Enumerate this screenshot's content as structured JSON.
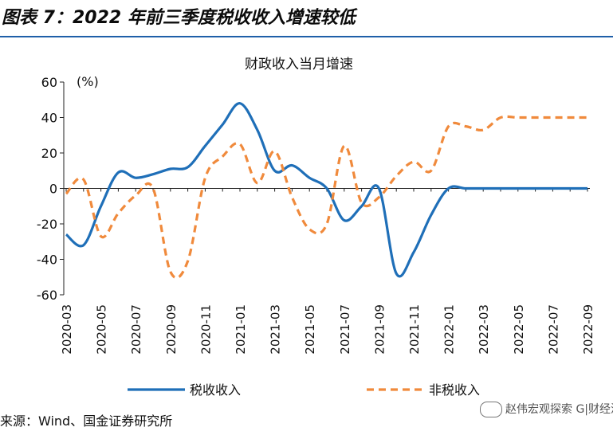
{
  "figure": {
    "title": "图表 7：2022 年前三季度税收收入增速较低",
    "source": "来源：Wind、国金证券研究所",
    "watermark": "赵伟宏观探索 G|财经汇"
  },
  "colors": {
    "tax": "#1f6fb8",
    "nontax": "#f08a3c",
    "rule": "#1f5fa8"
  },
  "chart_data": {
    "type": "line",
    "title": "财政收入当月增速",
    "unit_label": "(%)",
    "ylim": [
      -60,
      60
    ],
    "yticks": [
      60,
      40,
      20,
      0,
      -20,
      -40,
      -60
    ],
    "x": [
      "2020-03",
      "2020-04",
      "2020-05",
      "2020-06",
      "2020-07",
      "2020-08",
      "2020-09",
      "2020-10",
      "2020-11",
      "2020-12",
      "2021-01",
      "2021-02",
      "2021-03",
      "2021-04",
      "2021-05",
      "2021-06",
      "2021-07",
      "2021-08",
      "2021-09",
      "2021-10",
      "2021-11",
      "2021-12",
      "2022-01",
      "2022-02",
      "2022-03",
      "2022-04",
      "2022-05",
      "2022-06",
      "2022-07",
      "2022-08",
      "2022-09"
    ],
    "xtick_labels": [
      "2020-03",
      "2020-05",
      "2020-07",
      "2020-09",
      "2020-11",
      "2021-01",
      "2021-03",
      "2021-05",
      "2021-07",
      "2021-09",
      "2021-11",
      "2022-01",
      "2022-03",
      "2022-05",
      "2022-07",
      "2022-09"
    ],
    "series": [
      {
        "name": "税收收入",
        "style": "solid",
        "values": [
          -26,
          -32,
          -10,
          9,
          6,
          8,
          11,
          12,
          24,
          36,
          48,
          33,
          10,
          13,
          6,
          0,
          -18,
          -10,
          0,
          -48,
          -36,
          -15,
          0,
          0,
          0,
          0,
          0,
          0,
          0,
          0,
          0
        ]
      },
      {
        "name": "非税收入",
        "style": "dashed",
        "values": [
          -3,
          5,
          -27,
          -14,
          -4,
          0,
          -47,
          -41,
          6,
          18,
          25,
          3,
          21,
          -5,
          -23,
          -20,
          24,
          -8,
          -5,
          7,
          15,
          10,
          35,
          35,
          33,
          40,
          40,
          40,
          40,
          40,
          40
        ]
      }
    ],
    "legend_position": "bottom",
    "grid": false
  }
}
